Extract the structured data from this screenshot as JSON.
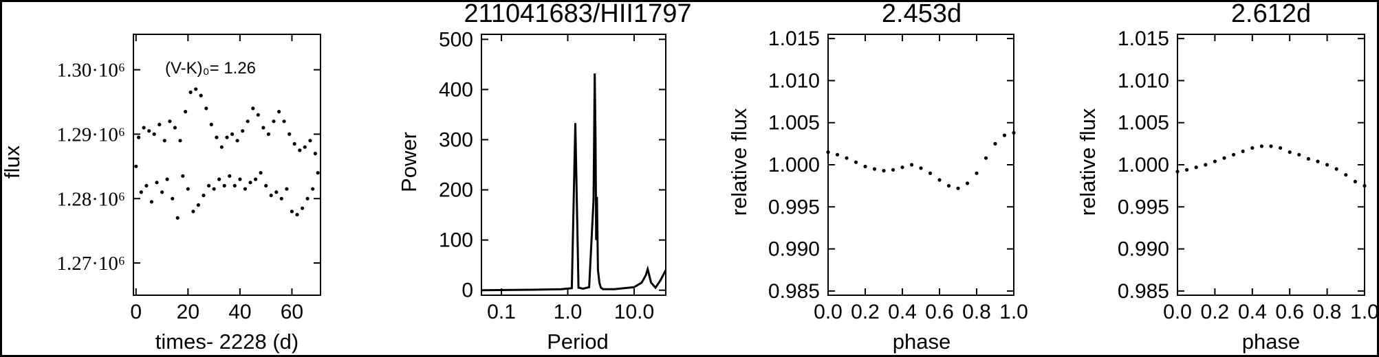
{
  "figure": {
    "panels": [
      {
        "id": "lightcurve",
        "type": "scatter",
        "title": "",
        "ylabel": "flux",
        "xlabel": "times- 2228 (d)",
        "annotation": "(V-K)₀= 1.26",
        "xlim": [
          -1,
          71
        ],
        "ylim": [
          1265000,
          1305500
        ],
        "x_ticks": [
          0,
          20,
          40,
          60
        ],
        "x_tick_labels": [
          "0",
          "20",
          "40",
          "60"
        ],
        "y_ticks": [
          1270000,
          1280000,
          1290000,
          1300000
        ],
        "y_tick_labels": [
          "1.27·10⁶",
          "1.28·10⁶",
          "1.29·10⁶",
          "1.30·10⁶"
        ],
        "series": [
          {
            "style": "dotted",
            "x": [
              0,
              1,
              2,
              3,
              4,
              5,
              6,
              7,
              8,
              9,
              10,
              11,
              12,
              13,
              14,
              15,
              16,
              17,
              18,
              19,
              20,
              21,
              22,
              23,
              24,
              25,
              26,
              27,
              28,
              29,
              30,
              31,
              32,
              33,
              34,
              35,
              36,
              37,
              38,
              39,
              40,
              41,
              42,
              43,
              44,
              45,
              46,
              47,
              48,
              49,
              50,
              51,
              52,
              53,
              54,
              55,
              56,
              57,
              58,
              59,
              60,
              61,
              62,
              63,
              64,
              65,
              66,
              67,
              68,
              69,
              70
            ],
            "y": [
              1285000,
              1289500,
              1281000,
              1291000,
              1282000,
              1290500,
              1279500,
              1290000,
              1282500,
              1291500,
              1281000,
              1289000,
              1283000,
              1292000,
              1280000,
              1291000,
              1277000,
              1289000,
              1283500,
              1293500,
              1281500,
              1296500,
              1278000,
              1297000,
              1279000,
              1296000,
              1280500,
              1294000,
              1282000,
              1291500,
              1281500,
              1289500,
              1283000,
              1288000,
              1282000,
              1289500,
              1283500,
              1290000,
              1282000,
              1289000,
              1283000,
              1290500,
              1281500,
              1292000,
              1282500,
              1294000,
              1283000,
              1293000,
              1284000,
              1291000,
              1282000,
              1290000,
              1280500,
              1292000,
              1281000,
              1293500,
              1280000,
              1292000,
              1281500,
              1290000,
              1278000,
              1288500,
              1277500,
              1287500,
              1278500,
              1288000,
              1280000,
              1289000,
              1281500,
              1287000,
              1284000
            ]
          }
        ]
      },
      {
        "id": "periodogram",
        "type": "line",
        "title": "211041683/HII1797",
        "ylabel": "Power",
        "xlabel": "Period",
        "x_scale": "log",
        "xlim": [
          0.05,
          30
        ],
        "ylim": [
          -10,
          510
        ],
        "x_ticks": [
          0.1,
          1.0,
          10.0
        ],
        "x_tick_labels": [
          "0.1",
          "1.0",
          "10.0"
        ],
        "y_ticks": [
          0,
          100,
          200,
          300,
          400,
          500
        ],
        "y_tick_labels": [
          "0",
          "100",
          "200",
          "300",
          "400",
          "500"
        ],
        "series": [
          {
            "style": "solid",
            "x": [
              0.05,
              0.3,
              0.8,
              1.15,
              1.3,
              1.45,
              1.7,
              2.1,
              2.45,
              2.55,
              2.62,
              2.68,
              2.75,
              2.85,
              3.0,
              3.15,
              3.4,
              5.0,
              10.0,
              13.0,
              15.0,
              16.0,
              18.0,
              21.0,
              25.0,
              30.0
            ],
            "y": [
              0,
              1,
              2,
              4,
              333,
              5,
              3,
              6,
              180,
              432,
              300,
              100,
              186,
              40,
              15,
              5,
              2,
              2,
              6,
              15,
              30,
              42,
              15,
              5,
              20,
              40
            ]
          }
        ]
      },
      {
        "id": "phase1",
        "type": "scatter",
        "title": "2.453d",
        "ylabel": "relative flux",
        "xlabel": "phase",
        "xlim": [
          0.0,
          1.0
        ],
        "ylim": [
          0.9845,
          1.0155
        ],
        "x_ticks": [
          0.0,
          0.2,
          0.4,
          0.6,
          0.8,
          1.0
        ],
        "x_tick_labels": [
          "0.0",
          "0.2",
          "0.4",
          "0.6",
          "0.8",
          "1.0"
        ],
        "y_ticks": [
          0.985,
          0.99,
          0.995,
          1.0,
          1.005,
          1.01,
          1.015
        ],
        "y_tick_labels": [
          "0.985",
          "0.990",
          "0.995",
          "1.000",
          "1.005",
          "1.010",
          "1.015"
        ],
        "series": [
          {
            "style": "dotted",
            "x": [
              0.0,
              0.05,
              0.1,
              0.15,
              0.2,
              0.25,
              0.3,
              0.35,
              0.4,
              0.45,
              0.5,
              0.55,
              0.6,
              0.65,
              0.7,
              0.75,
              0.8,
              0.85,
              0.9,
              0.95,
              1.0
            ],
            "y": [
              1.0015,
              1.0012,
              1.0008,
              1.0003,
              0.9998,
              0.9995,
              0.9993,
              0.9994,
              0.9997,
              1.0,
              0.9996,
              0.999,
              0.9982,
              0.9975,
              0.9972,
              0.9978,
              0.999,
              1.0008,
              1.0025,
              1.0035,
              1.0038
            ]
          }
        ]
      },
      {
        "id": "phase2",
        "type": "scatter",
        "title": "2.612d",
        "ylabel": "relative flux",
        "xlabel": "phase",
        "xlim": [
          0.0,
          1.0
        ],
        "ylim": [
          0.9845,
          1.0155
        ],
        "x_ticks": [
          0.0,
          0.2,
          0.4,
          0.6,
          0.8,
          1.0
        ],
        "x_tick_labels": [
          "0.0",
          "0.2",
          "0.4",
          "0.6",
          "0.8",
          "1.0"
        ],
        "y_ticks": [
          0.985,
          0.99,
          0.995,
          1.0,
          1.005,
          1.01,
          1.015
        ],
        "y_tick_labels": [
          "0.985",
          "0.990",
          "0.995",
          "1.000",
          "1.005",
          "1.010",
          "1.015"
        ],
        "series": [
          {
            "style": "dotted",
            "x": [
              0.0,
              0.05,
              0.1,
              0.15,
              0.2,
              0.25,
              0.3,
              0.35,
              0.4,
              0.45,
              0.5,
              0.55,
              0.6,
              0.65,
              0.7,
              0.75,
              0.8,
              0.85,
              0.9,
              0.95,
              1.0
            ],
            "y": [
              0.9992,
              0.9994,
              0.9997,
              1.0,
              1.0004,
              1.0008,
              1.0012,
              1.0016,
              1.002,
              1.0022,
              1.0022,
              1.002,
              1.0015,
              1.0012,
              1.0007,
              1.0004,
              1.0,
              0.9995,
              0.9988,
              0.998,
              0.9975
            ]
          }
        ]
      }
    ]
  }
}
